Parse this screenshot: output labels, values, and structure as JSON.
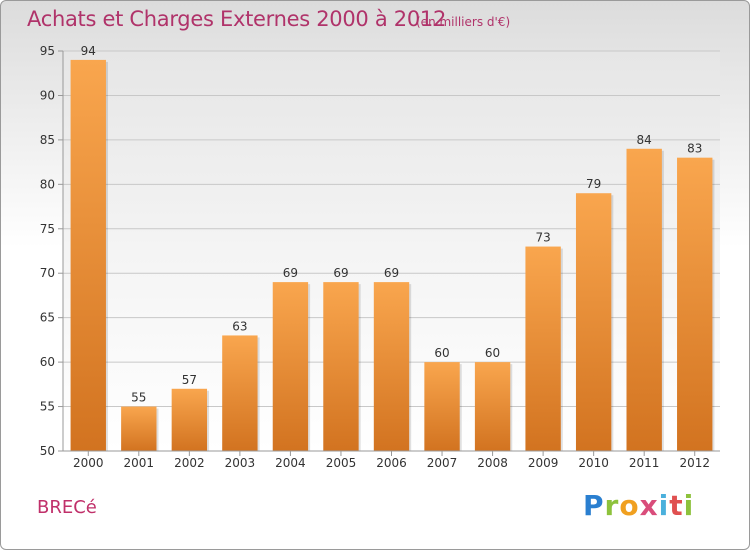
{
  "title": "Achats et Charges Externes 2000 à 2012",
  "subtitle": "(en milliers d'€)",
  "place": "BRECé",
  "logo": {
    "p": "P",
    "r": "r",
    "o": "o",
    "x": "x",
    "i": "i",
    "t": "t",
    "i2": "i"
  },
  "colors": {
    "bar_light": "#f9a64e",
    "bar_dark": "#d27320",
    "title": "#b0336a"
  },
  "chart_data": {
    "type": "bar",
    "categories": [
      "2000",
      "2001",
      "2002",
      "2003",
      "2004",
      "2005",
      "2006",
      "2007",
      "2008",
      "2009",
      "2010",
      "2011",
      "2012"
    ],
    "values": [
      94,
      55,
      57,
      63,
      69,
      69,
      69,
      60,
      60,
      73,
      79,
      84,
      83
    ],
    "ylim": [
      50,
      95
    ],
    "yticks": [
      50,
      55,
      60,
      65,
      70,
      75,
      80,
      85,
      90,
      95
    ],
    "grid": true,
    "data_labels": true
  }
}
